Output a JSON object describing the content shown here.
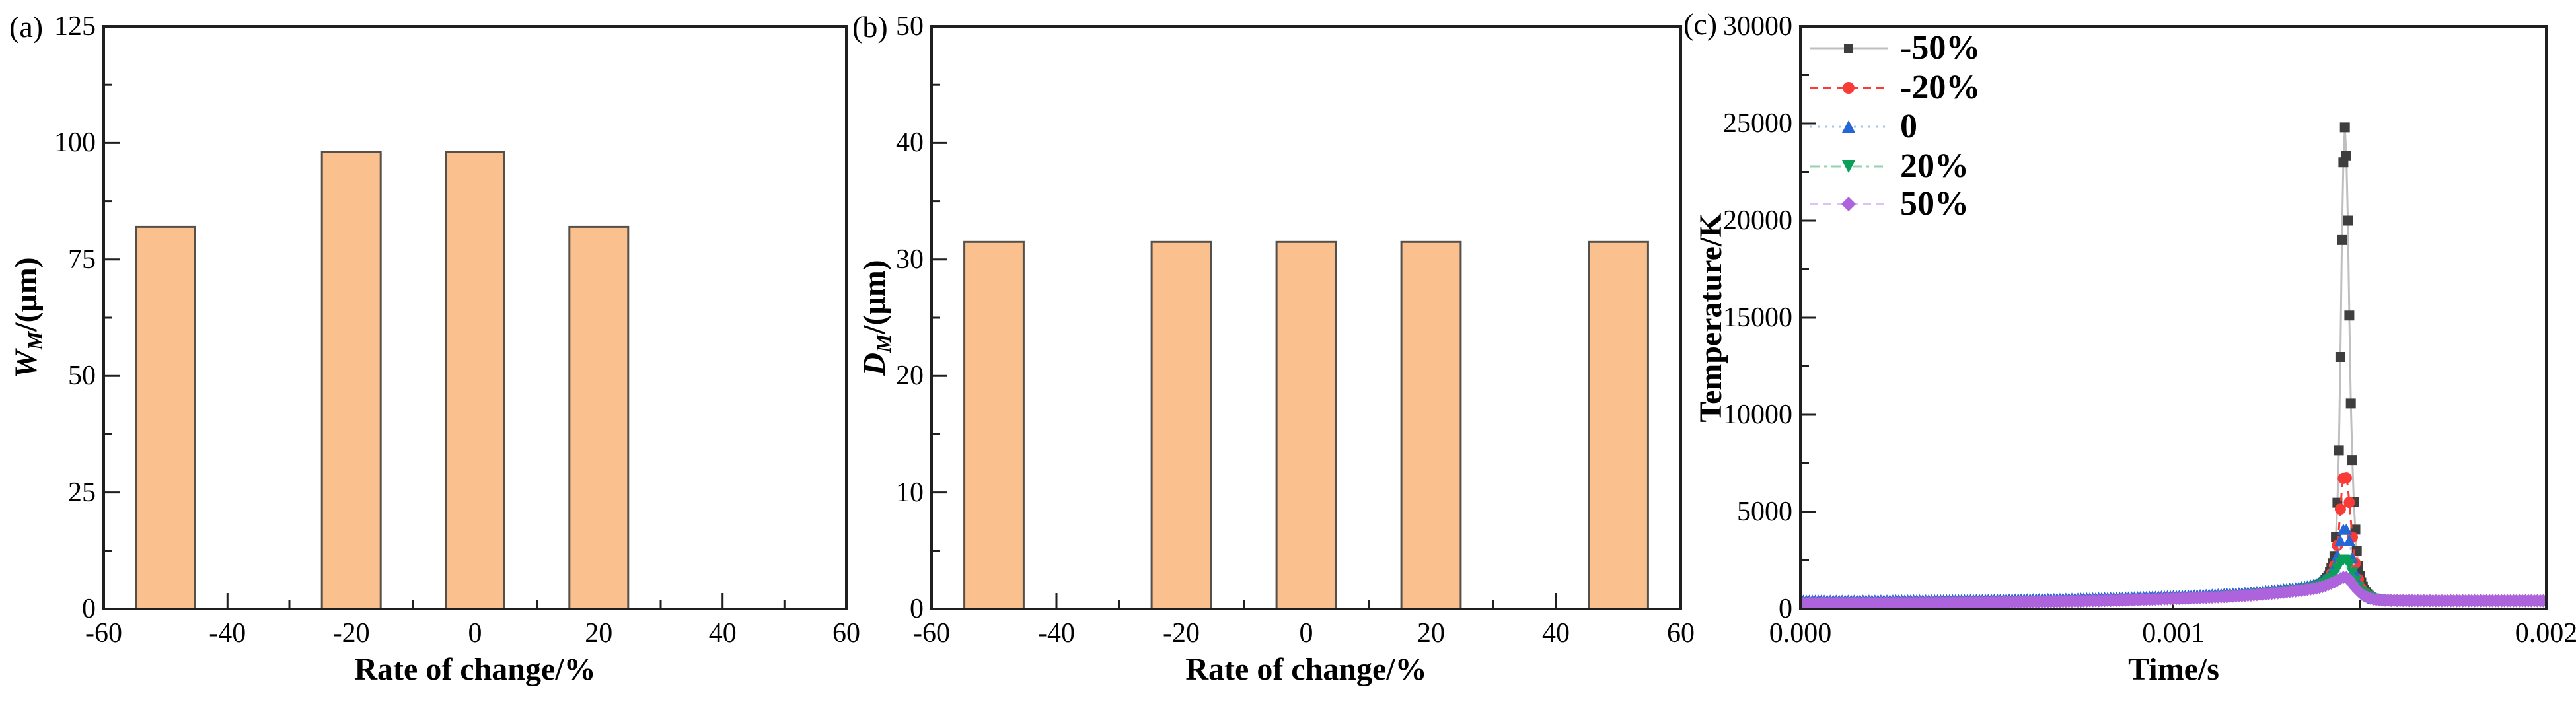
{
  "page": {
    "background": "#ffffff",
    "frame_color": "#1f1f1f"
  },
  "panels": [
    {
      "letter": "(a)",
      "xlabel": "Rate of change/%",
      "ylabel": {
        "italic": "W",
        "sub": "M",
        "rest": "/(μm)"
      },
      "x_tick_labels": [
        "-60",
        "-40",
        "-20",
        "0",
        "20",
        "40",
        "60"
      ],
      "y_tick_labels": [
        "0",
        "25",
        "50",
        "75",
        "100",
        "125"
      ]
    },
    {
      "letter": "(b)",
      "xlabel": "Rate of change/%",
      "ylabel": {
        "italic": "D",
        "sub": "M",
        "rest": "/(μm)"
      },
      "x_tick_labels": [
        "-60",
        "-40",
        "-20",
        "0",
        "20",
        "40",
        "60"
      ],
      "y_tick_labels": [
        "0",
        "10",
        "20",
        "30",
        "40",
        "50"
      ]
    },
    {
      "letter": "(c)",
      "xlabel": "Time/s",
      "ylabel": {
        "italic": "",
        "sub": "",
        "rest": "Temperature/K"
      },
      "x_tick_labels": [
        "0.000",
        "0.001",
        "0.002"
      ],
      "y_tick_labels": [
        "0",
        "5000",
        "10000",
        "15000",
        "20000",
        "25000",
        "30000"
      ]
    }
  ],
  "chart_data": [
    {
      "type": "bar",
      "title": "(a)",
      "xlabel": "Rate of change/%",
      "ylabel": "W_M/(μm)",
      "xlim": [
        -60,
        60
      ],
      "ylim": [
        0,
        125
      ],
      "x_major_step": 20,
      "x_minor_step": 10,
      "y_major_step": 25,
      "y_minor_step": 12.5,
      "categories": [
        -50,
        -20,
        0,
        20
      ],
      "values": [
        82,
        98,
        98,
        82
      ],
      "bar_width_units": 9.5,
      "bar_fill": "#FAC08E",
      "bar_edge": "#55504A",
      "grid": false
    },
    {
      "type": "bar",
      "title": "(b)",
      "xlabel": "Rate of change/%",
      "ylabel": "D_M/(μm)",
      "xlim": [
        -60,
        60
      ],
      "ylim": [
        0,
        50
      ],
      "x_major_step": 20,
      "x_minor_step": 10,
      "y_major_step": 10,
      "y_minor_step": 5,
      "categories": [
        -50,
        -20,
        0,
        20,
        50
      ],
      "values": [
        31.5,
        31.5,
        31.5,
        31.5,
        31.5
      ],
      "bar_width_units": 9.5,
      "bar_fill": "#FAC08E",
      "bar_edge": "#55504A",
      "grid": false
    },
    {
      "type": "line",
      "title": "(c)",
      "xlabel": "Time/s",
      "ylabel": "Temperature/K",
      "xlim": [
        0,
        0.002
      ],
      "ylim": [
        0,
        30000
      ],
      "x_major_step": 0.001,
      "x_minor_step": 0.0005,
      "y_major_step": 5000,
      "y_minor_step": 2500,
      "grid": false,
      "legend_position": "top-left",
      "peak_time_s": 0.00146,
      "t_key_points": [
        0,
        0.0002,
        0.0004,
        0.0006,
        0.0008,
        0.001,
        0.0011,
        0.0012,
        0.0013,
        0.00136,
        0.0014,
        0.00143,
        0.001445,
        0.001452,
        0.00146,
        0.001468,
        0.001475,
        0.001482,
        0.00149,
        0.0015,
        0.001515,
        0.00153,
        0.00155,
        0.0016,
        0.0017,
        0.0018,
        0.0019,
        0.002
      ],
      "series": [
        {
          "name": "-50%",
          "slug": "minus-50",
          "marker": "square",
          "peak_K": 24800,
          "marker_color": "#3E3E3E",
          "line_color": "#BFBFBF",
          "dash": "solid",
          "values": [
            300,
            310,
            330,
            370,
            430,
            540,
            610,
            720,
            900,
            1050,
            1350,
            2500,
            9000,
            19000,
            24800,
            20000,
            11500,
            6500,
            3500,
            1700,
            900,
            600,
            480,
            430,
            420,
            420,
            420,
            420
          ]
        },
        {
          "name": "-20%",
          "slug": "minus-20",
          "marker": "circle",
          "peak_K": 6900,
          "marker_color": "#F93B38",
          "line_color": "#F93B38",
          "dash": "dash",
          "values": [
            300,
            310,
            330,
            370,
            430,
            540,
            610,
            720,
            900,
            1050,
            1300,
            2100,
            4300,
            6200,
            6900,
            6300,
            4800,
            3300,
            2100,
            1250,
            800,
            580,
            470,
            430,
            420,
            420,
            420,
            420
          ]
        },
        {
          "name": "0",
          "slug": "zero",
          "marker": "triangle-up",
          "peak_K": 4150,
          "marker_color": "#2565D6",
          "line_color": "#A8C2F0",
          "dash": "dot",
          "values": [
            430,
            440,
            460,
            500,
            560,
            670,
            740,
            850,
            1030,
            1180,
            1420,
            2100,
            3200,
            3900,
            4150,
            3900,
            3200,
            2400,
            1700,
            1150,
            780,
            590,
            500,
            470,
            460,
            460,
            460,
            460
          ]
        },
        {
          "name": "20%",
          "slug": "plus-20",
          "marker": "triangle-down",
          "peak_K": 2550,
          "marker_color": "#0AA05A",
          "line_color": "#93D2B1",
          "dash": "dash-dot",
          "values": [
            300,
            310,
            330,
            370,
            430,
            540,
            610,
            720,
            900,
            1040,
            1250,
            1750,
            2250,
            2480,
            2550,
            2460,
            2150,
            1750,
            1350,
            1000,
            720,
            560,
            470,
            430,
            420,
            420,
            420,
            420
          ]
        },
        {
          "name": "50%",
          "slug": "plus-50",
          "marker": "diamond",
          "peak_K": 1630,
          "marker_color": "#AC63DB",
          "line_color": "#DCC4F2",
          "dash": "dash",
          "values": [
            290,
            300,
            320,
            360,
            420,
            530,
            600,
            700,
            870,
            1000,
            1150,
            1380,
            1530,
            1600,
            1630,
            1590,
            1450,
            1250,
            1050,
            850,
            650,
            540,
            470,
            430,
            420,
            420,
            420,
            420
          ]
        }
      ]
    }
  ]
}
